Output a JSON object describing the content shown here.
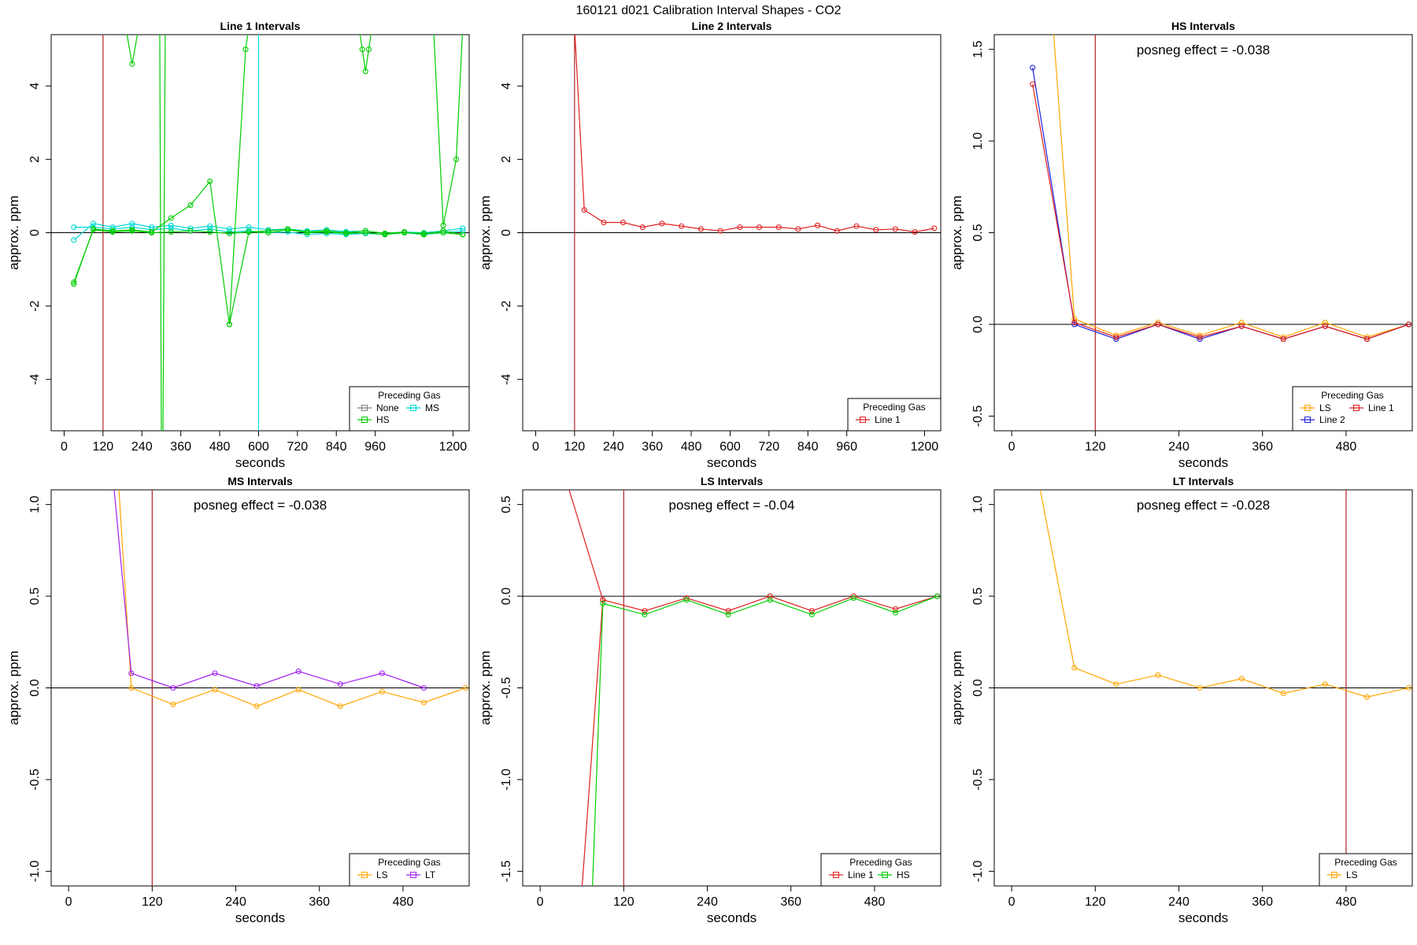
{
  "figure": {
    "title": "160121  d021   Calibration Interval Shapes - CO2"
  },
  "colors": {
    "None": "#808080",
    "HS": "#00cc00",
    "MS": "#00d8d8",
    "Line 1": "#e02020",
    "Line 2": "#2020e0",
    "LS": "#ffa500",
    "LT": "#a020f0",
    "vline_red": "#b22222",
    "vline_cyan": "#00e5ee"
  },
  "chart_data": [
    {
      "type": "line",
      "title": "Line 1 Intervals",
      "xlabel": "seconds",
      "ylabel": "approx. ppm",
      "xlim": [
        -40,
        1250
      ],
      "ylim": [
        -5.4,
        5.4
      ],
      "xticks": [
        0,
        120,
        240,
        360,
        480,
        600,
        720,
        840,
        960,
        1200
      ],
      "yticks": [
        -4,
        -2,
        0,
        2,
        4
      ],
      "vlines": [
        {
          "x": 120,
          "color": "vline_red"
        },
        {
          "x": 600,
          "color": "vline_cyan"
        }
      ],
      "legend": {
        "title": "Preceding Gas",
        "position": "bottom-right",
        "entries": [
          "None",
          "MS",
          "HS"
        ],
        "cols": 2
      },
      "series": [
        {
          "name": "MS",
          "x": [
            30,
            90,
            150,
            210,
            270,
            330,
            390,
            450,
            510,
            570,
            630,
            690,
            750,
            810,
            870,
            930,
            990,
            1050,
            1110,
            1170,
            1230
          ],
          "y": [
            -0.2,
            0.25,
            0.15,
            0.25,
            0.15,
            0.2,
            0.12,
            0.18,
            0.1,
            0.15,
            0.08,
            0.1,
            0.05,
            0.08,
            0.03,
            0.05,
            -0.02,
            0.02,
            0,
            0.05,
            0.12
          ]
        },
        {
          "name": "MS",
          "x": [
            30,
            90,
            150,
            210,
            270,
            330,
            390,
            450,
            510,
            570,
            630,
            690,
            750,
            810,
            870,
            930,
            990,
            1050,
            1110,
            1170,
            1230
          ],
          "y": [
            0.15,
            0.15,
            0.1,
            0.15,
            0.08,
            0.12,
            0.05,
            0.1,
            0.02,
            0.05,
            0,
            0.02,
            -0.05,
            -0.02,
            -0.05,
            -0.02,
            -0.05,
            0,
            -0.05,
            0,
            0.05
          ]
        },
        {
          "name": "HS",
          "x": [
            30,
            90,
            150,
            210,
            270,
            330,
            390,
            450,
            510,
            570,
            630,
            690,
            750,
            810,
            870,
            930,
            990,
            1050,
            1110,
            1170,
            1230
          ],
          "y": [
            -1.4,
            0.1,
            0.05,
            0.08,
            0.02,
            0.4,
            0.75,
            1.4,
            -2.5,
            0.02,
            0.05,
            0.1,
            0.02,
            0.05,
            0,
            0.05,
            -0.02,
            0.02,
            -0.05,
            0.05,
            -0.05
          ]
        },
        {
          "name": "HS",
          "x": [
            30,
            90,
            150,
            210,
            270,
            330,
            390,
            450,
            510,
            570,
            630,
            690,
            750,
            810,
            870,
            930,
            990,
            1050,
            1110,
            1170,
            1230
          ],
          "y": [
            -1.35,
            0.08,
            0.02,
            0.05,
            0,
            0.02,
            0.05,
            0.02,
            -0.02,
            0.02,
            0,
            0.08,
            0,
            0.02,
            -0.02,
            0,
            -0.05,
            0,
            -0.02,
            0,
            -0.05
          ]
        },
        {
          "name": "HS",
          "x": [
            150,
            170,
            190,
            210,
            230,
            250
          ],
          "y": [
            5.6,
            5.6,
            5.6,
            4.6,
            5.6,
            5.6
          ]
        },
        {
          "name": "HS",
          "x": [
            295,
            300,
            305,
            312
          ],
          "y": [
            5.6,
            -5.6,
            -5.6,
            5.6
          ]
        },
        {
          "name": "HS",
          "x": [
            510,
            560,
            570
          ],
          "y": [
            -2.5,
            5.0,
            5.6
          ]
        },
        {
          "name": "HS",
          "x": [
            910,
            920,
            930,
            940,
            950
          ],
          "y": [
            5.6,
            5.0,
            4.4,
            5.0,
            5.6
          ]
        },
        {
          "name": "HS",
          "x": [
            1140,
            1170,
            1210,
            1230
          ],
          "y": [
            5.6,
            0.2,
            2.0,
            5.6
          ]
        }
      ]
    },
    {
      "type": "line",
      "title": "Line 2 Intervals",
      "xlabel": "seconds",
      "ylabel": "approx. ppm",
      "xlim": [
        -40,
        1250
      ],
      "ylim": [
        -5.4,
        5.4
      ],
      "xticks": [
        0,
        120,
        240,
        360,
        480,
        600,
        720,
        840,
        960,
        1200
      ],
      "yticks": [
        -4,
        -2,
        0,
        2,
        4
      ],
      "vlines": [
        {
          "x": 120,
          "color": "vline_red"
        }
      ],
      "legend": {
        "title": "Preceding Gas",
        "position": "bottom-right",
        "entries": [
          "Line 1"
        ],
        "cols": 1
      },
      "series": [
        {
          "name": "Line 1",
          "x": [
            120,
            150,
            210,
            270,
            330,
            390,
            450,
            510,
            570,
            630,
            690,
            750,
            810,
            870,
            930,
            990,
            1050,
            1110,
            1170,
            1230
          ],
          "y": [
            5.6,
            0.62,
            0.28,
            0.28,
            0.15,
            0.25,
            0.18,
            0.1,
            0.05,
            0.15,
            0.15,
            0.15,
            0.1,
            0.2,
            0.05,
            0.18,
            0.08,
            0.1,
            0.02,
            0.12
          ]
        }
      ]
    },
    {
      "type": "line",
      "title": "HS Intervals",
      "annotation": "posneg effect = -0.038",
      "xlabel": "seconds",
      "ylabel": "approx. ppm",
      "xlim": [
        -25,
        575
      ],
      "ylim": [
        -0.58,
        1.58
      ],
      "xticks": [
        0,
        120,
        240,
        360,
        480
      ],
      "yticks": [
        -0.5,
        0.0,
        0.5,
        1.0,
        1.5
      ],
      "vlines": [
        {
          "x": 120,
          "color": "vline_red"
        }
      ],
      "legend": {
        "title": "Preceding Gas",
        "position": "bottom-right",
        "entries": [
          "LS",
          "Line 1",
          "Line 2"
        ],
        "cols": 2
      },
      "series": [
        {
          "name": "LS",
          "x": [
            60,
            90,
            150,
            210,
            270,
            330,
            390,
            450,
            510,
            570
          ],
          "y": [
            1.6,
            0.03,
            -0.06,
            0.01,
            -0.06,
            0.01,
            -0.07,
            0.01,
            -0.07,
            0
          ]
        },
        {
          "name": "Line 2",
          "x": [
            30,
            90,
            150,
            210,
            270,
            330,
            390,
            450,
            510,
            570
          ],
          "y": [
            1.4,
            0,
            -0.08,
            0,
            -0.08,
            -0.01,
            -0.08,
            -0.01,
            -0.08,
            0
          ]
        },
        {
          "name": "Line 1",
          "x": [
            30,
            90,
            150,
            210,
            270,
            330,
            390,
            450,
            510,
            570
          ],
          "y": [
            1.31,
            0.01,
            -0.07,
            0,
            -0.07,
            -0.01,
            -0.08,
            -0.01,
            -0.08,
            0
          ]
        }
      ]
    },
    {
      "type": "line",
      "title": "MS Intervals",
      "annotation": "posneg effect = -0.038",
      "xlabel": "seconds",
      "ylabel": "approx. ppm",
      "xlim": [
        -25,
        575
      ],
      "ylim": [
        -1.08,
        1.08
      ],
      "xticks": [
        0,
        120,
        240,
        360,
        480
      ],
      "yticks": [
        -1.0,
        -0.5,
        0.0,
        0.5,
        1.0
      ],
      "vlines": [
        {
          "x": 120,
          "color": "vline_red"
        }
      ],
      "legend": {
        "title": "Preceding Gas",
        "position": "bottom-right",
        "entries": [
          "LS",
          "LT"
        ],
        "cols": 2
      },
      "series": [
        {
          "name": "LS",
          "x": [
            72,
            90,
            150,
            210,
            270,
            330,
            390,
            450,
            510,
            570
          ],
          "y": [
            1.1,
            0,
            -0.09,
            -0.01,
            -0.1,
            -0.01,
            -0.1,
            -0.02,
            -0.08,
            0
          ]
        },
        {
          "name": "LT",
          "x": [
            65,
            90,
            150,
            210,
            270,
            330,
            390,
            450,
            510
          ],
          "y": [
            1.1,
            0.08,
            0,
            0.08,
            0.01,
            0.09,
            0.02,
            0.08,
            0
          ]
        }
      ]
    },
    {
      "type": "line",
      "title": "LS Intervals",
      "annotation": "posneg effect = -0.04",
      "xlabel": "seconds",
      "ylabel": "approx. ppm",
      "xlim": [
        -25,
        575
      ],
      "ylim": [
        -1.58,
        0.58
      ],
      "xticks": [
        0,
        120,
        240,
        360,
        480
      ],
      "yticks": [
        -1.5,
        -1.0,
        -0.5,
        0.0,
        0.5
      ],
      "vlines": [
        {
          "x": 120,
          "color": "vline_red"
        }
      ],
      "legend": {
        "title": "Preceding Gas",
        "position": "bottom-right",
        "entries": [
          "Line 1",
          "HS"
        ],
        "cols": 2
      },
      "series": [
        {
          "name": "Line 1",
          "x": [
            60,
            90,
            150,
            210,
            270,
            330,
            390,
            450,
            510,
            570
          ],
          "y": [
            -1.6,
            -0.02,
            -0.08,
            -0.01,
            -0.08,
            0,
            -0.08,
            0,
            -0.07,
            0
          ]
        },
        {
          "name": "Line 1",
          "x": [
            40,
            90
          ],
          "y": [
            0.6,
            -0.02
          ]
        },
        {
          "name": "HS",
          "x": [
            75,
            90,
            150,
            210,
            270,
            330,
            390,
            450,
            510,
            570
          ],
          "y": [
            -1.6,
            -0.04,
            -0.1,
            -0.02,
            -0.1,
            -0.02,
            -0.1,
            -0.01,
            -0.09,
            0
          ]
        }
      ]
    },
    {
      "type": "line",
      "title": "LT Intervals",
      "annotation": "posneg effect = -0.028",
      "xlabel": "seconds",
      "ylabel": "approx. ppm",
      "xlim": [
        -25,
        575
      ],
      "ylim": [
        -1.08,
        1.08
      ],
      "xticks": [
        0,
        120,
        240,
        360,
        480
      ],
      "yticks": [
        -1.0,
        -0.5,
        0.0,
        0.5,
        1.0
      ],
      "vlines": [
        {
          "x": 480,
          "color": "vline_red"
        }
      ],
      "legend": {
        "title": "Preceding Gas",
        "position": "bottom-right",
        "entries": [
          "LS"
        ],
        "cols": 1
      },
      "series": [
        {
          "name": "LS",
          "x": [
            40,
            90,
            150,
            210,
            270,
            330,
            390,
            450,
            510,
            570
          ],
          "y": [
            1.1,
            0.11,
            0.02,
            0.07,
            0,
            0.05,
            -0.03,
            0.02,
            -0.05,
            0
          ]
        }
      ]
    }
  ]
}
